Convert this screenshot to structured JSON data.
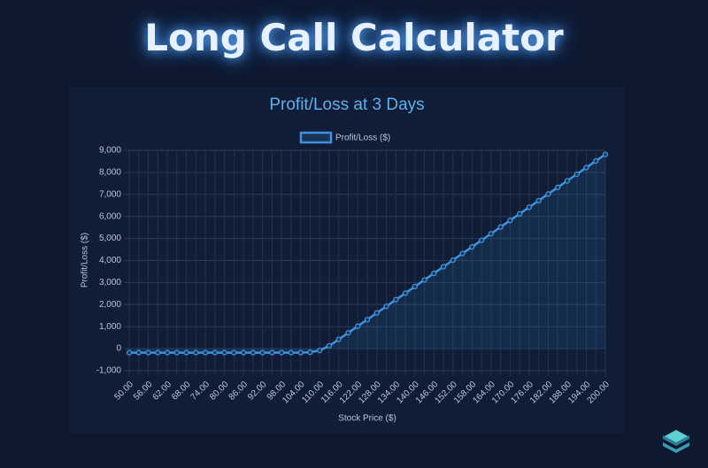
{
  "page_title": "Long Call Calculator",
  "chart_data": {
    "type": "line",
    "title": "Profit/Loss at 3 Days",
    "x_label": "Stock Price ($)",
    "y_label": "Profit/Loss ($)",
    "categories": [
      "50.00",
      null,
      "56.00",
      null,
      "62.00",
      null,
      "68.00",
      null,
      "74.00",
      null,
      "80.00",
      null,
      "86.00",
      null,
      "92.00",
      null,
      "98.00",
      null,
      "104.00",
      null,
      "110.00",
      null,
      "116.00",
      null,
      "122.00",
      null,
      "128.00",
      null,
      "134.00",
      null,
      "140.00",
      null,
      "146.00",
      null,
      "152.00",
      null,
      "158.00",
      null,
      "164.00",
      null,
      "170.00",
      null,
      "176.00",
      null,
      "182.00",
      null,
      "188.00",
      null,
      "194.00",
      null,
      "200.00"
    ],
    "series": [
      {
        "name": "Profit/Loss ($)",
        "color": "#3d93dd",
        "values": [
          -180,
          -180,
          -180,
          -180,
          -180,
          -180,
          -180,
          -180,
          -180,
          -180,
          -180,
          -180,
          -180,
          -180,
          -180,
          -180,
          -180,
          -180,
          -180,
          -165,
          -80,
          130,
          420,
          720,
          1020,
          1320,
          1620,
          1920,
          2220,
          2520,
          2820,
          3120,
          3420,
          3720,
          4020,
          4320,
          4620,
          4920,
          5220,
          5520,
          5820,
          6120,
          6420,
          6720,
          7020,
          7320,
          7620,
          7920,
          8220,
          8520,
          8820
        ]
      }
    ],
    "ylim": [
      -1000,
      9000
    ],
    "yticks": [
      {
        "value": -1000,
        "label": "-1,000"
      },
      0,
      {
        "value": 1000,
        "label": "1,000"
      },
      {
        "value": 2000,
        "label": "2,000"
      },
      {
        "value": 3000,
        "label": "3,000"
      },
      {
        "value": 4000,
        "label": "4,000"
      },
      {
        "value": 5000,
        "label": "5,000"
      },
      {
        "value": 6000,
        "label": "6,000"
      },
      {
        "value": 7000,
        "label": "7,000"
      },
      {
        "value": 8000,
        "label": "8,000"
      },
      {
        "value": 9000,
        "label": "9,000"
      }
    ],
    "grid": true,
    "legend": "top"
  }
}
